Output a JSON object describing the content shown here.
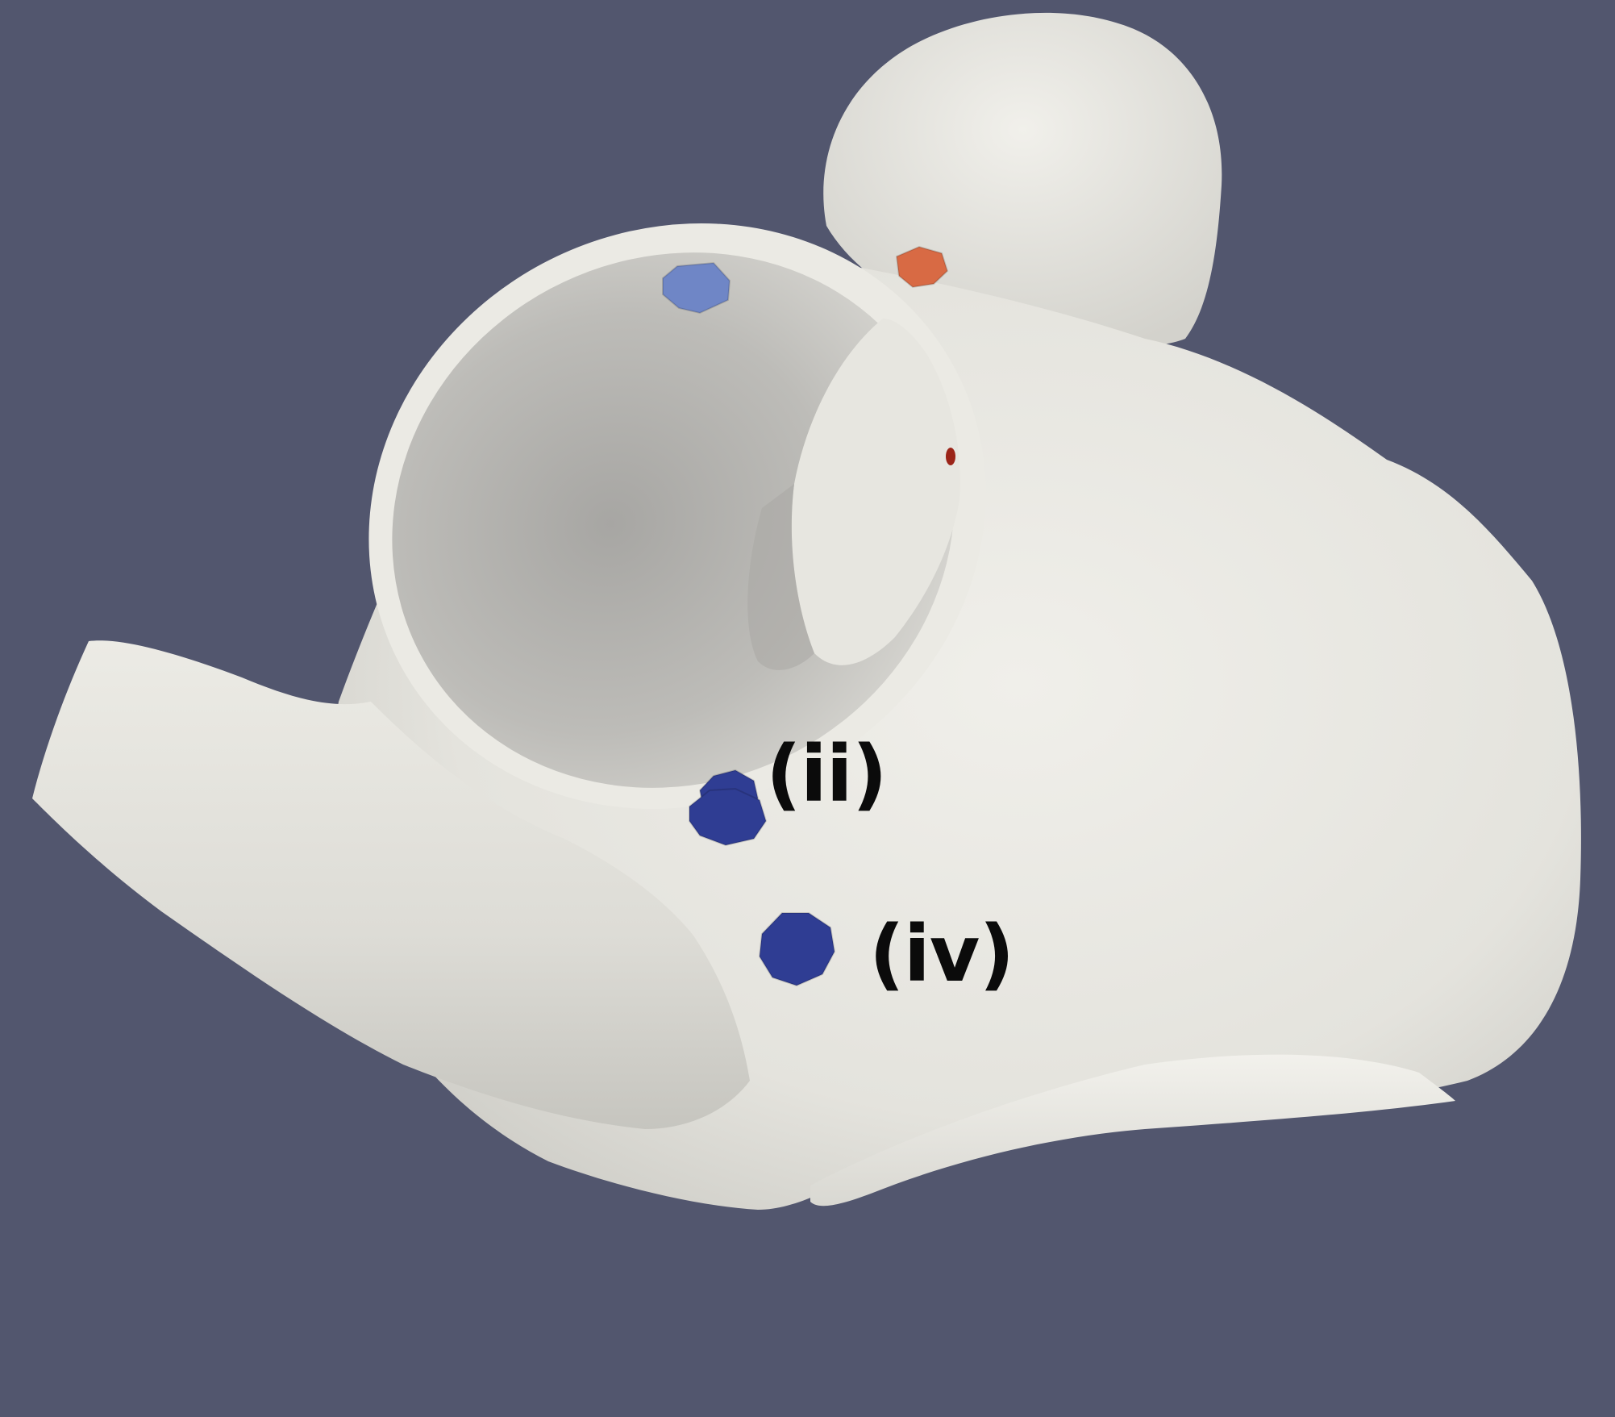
{
  "colors": {
    "background": "#52566e",
    "surface": "#e9e8e2",
    "surface_shadow": "#c3c2bd",
    "inner_wall": "#b5b4b0",
    "marker_blue": "#2f3d93",
    "marker_light_blue": "#6f86c6",
    "marker_orange": "#d86a44",
    "marker_red": "#9b2418",
    "label_text": "#0b0b0b"
  },
  "labels": {
    "ii": "(ii)",
    "iv": "(iv)"
  },
  "markers": [
    {
      "name": "marker-light-blue-top",
      "color": "marker_light_blue"
    },
    {
      "name": "marker-orange-top",
      "color": "marker_orange"
    },
    {
      "name": "marker-ii-upper",
      "color": "marker_blue"
    },
    {
      "name": "marker-ii-lower",
      "color": "marker_blue"
    },
    {
      "name": "marker-iv",
      "color": "marker_blue"
    }
  ]
}
